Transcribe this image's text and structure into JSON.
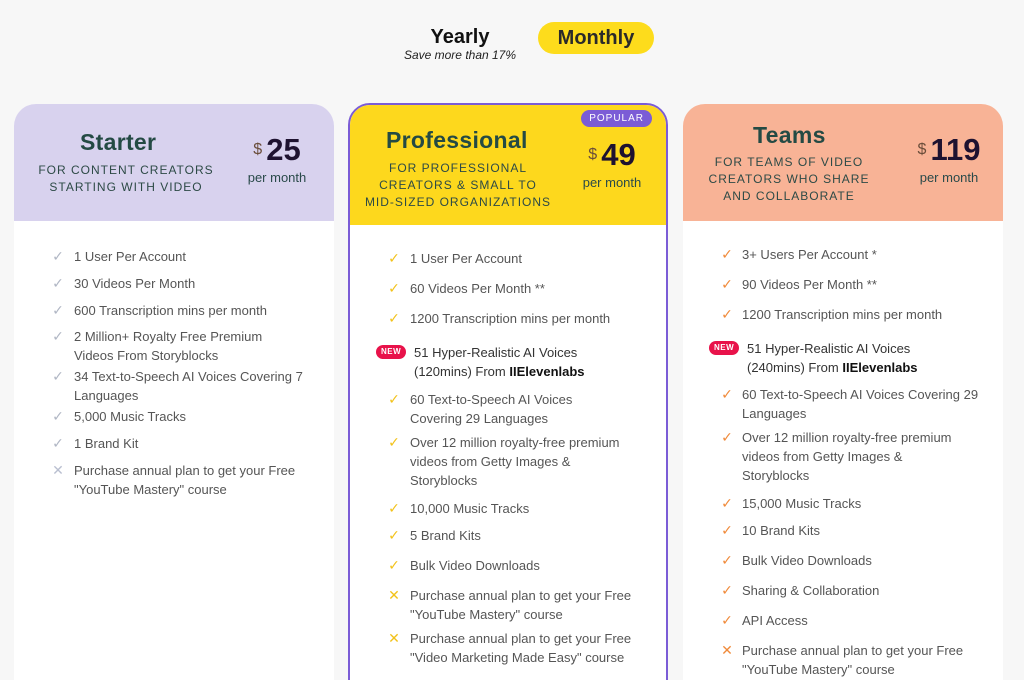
{
  "toggle": {
    "yearly_label": "Yearly",
    "yearly_note": "Save more than 17%",
    "monthly_label": "Monthly"
  },
  "colors": {
    "starter_header": "#d8d2ee",
    "pro_header": "#fdd81d",
    "teams_header": "#f8b396",
    "accent_purple": "#7b5cd6",
    "new_badge": "#e8124a"
  },
  "plans": [
    {
      "name": "Starter",
      "subtitle": "For content creators starting with video",
      "currency": "$",
      "price": "25",
      "period": "per month",
      "features": [
        {
          "icon": "check-icon",
          "text": "1 User Per Account"
        },
        {
          "icon": "check-icon",
          "text": "30 Videos Per Month"
        },
        {
          "icon": "check-icon",
          "text": "600 Transcription mins per month"
        },
        {
          "icon": "check-icon",
          "text": "2 Million+ Royalty Free Premium Videos From Storyblocks"
        },
        {
          "icon": "check-icon",
          "text": "34 Text-to-Speech AI Voices Covering 7 Languages"
        },
        {
          "icon": "check-icon",
          "text": "5,000 Music Tracks"
        },
        {
          "icon": "check-icon",
          "text": "1 Brand Kit"
        },
        {
          "icon": "cross-icon",
          "text": "Purchase annual plan to get your Free \"YouTube Mastery\" course"
        }
      ]
    },
    {
      "name": "Professional",
      "badge": "POPULAR",
      "subtitle": "For professional creators & small to mid-sized organizations",
      "currency": "$",
      "price": "49",
      "period": "per month",
      "features": [
        {
          "icon": "check-icon",
          "text": "1 User Per Account"
        },
        {
          "icon": "check-icon",
          "text": "60 Videos Per Month **"
        },
        {
          "icon": "check-icon",
          "text": "1200 Transcription mins per month"
        },
        {
          "icon": "new-badge",
          "badge": "NEW",
          "text": "51 Hyper-Realistic AI Voices (120mins) From",
          "brand": "IIElevenlabs"
        },
        {
          "icon": "check-icon",
          "text": "60 Text-to-Speech AI Voices Covering 29 Languages"
        },
        {
          "icon": "check-icon",
          "text": "Over 12 million royalty-free premium videos from Getty Images & Storyblocks"
        },
        {
          "icon": "check-icon",
          "text": "10,000 Music Tracks"
        },
        {
          "icon": "check-icon",
          "text": "5 Brand Kits"
        },
        {
          "icon": "check-icon",
          "text": "Bulk Video Downloads"
        },
        {
          "icon": "cross-icon",
          "text": "Purchase annual plan to get your Free \"YouTube Mastery\" course"
        },
        {
          "icon": "cross-icon",
          "text": "Purchase annual plan to get your Free \"Video Marketing Made Easy\" course"
        }
      ]
    },
    {
      "name": "Teams",
      "subtitle": "For teams of video creators who share and collaborate",
      "currency": "$",
      "price": "119",
      "period": "per month",
      "features": [
        {
          "icon": "check-icon",
          "text": "3+ Users Per Account *"
        },
        {
          "icon": "check-icon",
          "text": "90 Videos Per Month **"
        },
        {
          "icon": "check-icon",
          "text": "1200 Transcription mins per month"
        },
        {
          "icon": "new-badge",
          "badge": "NEW",
          "text": "51 Hyper-Realistic AI Voices (240mins) From",
          "brand": "IIElevenlabs"
        },
        {
          "icon": "check-icon",
          "text": "60 Text-to-Speech AI Voices Covering 29 Languages"
        },
        {
          "icon": "check-icon",
          "text": "Over 12 million royalty-free premium videos from Getty Images & Storyblocks"
        },
        {
          "icon": "check-icon",
          "text": "15,000 Music Tracks"
        },
        {
          "icon": "check-icon",
          "text": "10 Brand Kits"
        },
        {
          "icon": "check-icon",
          "text": "Bulk Video Downloads"
        },
        {
          "icon": "check-icon",
          "text": "Sharing & Collaboration"
        },
        {
          "icon": "check-icon",
          "text": "API Access"
        },
        {
          "icon": "cross-icon",
          "text": "Purchase annual plan to get your Free \"YouTube Mastery\" course"
        }
      ]
    }
  ]
}
